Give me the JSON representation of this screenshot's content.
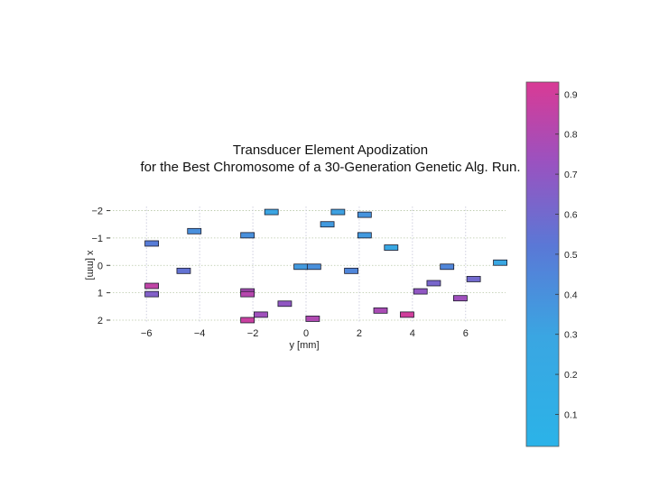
{
  "chart_data": {
    "type": "scatter",
    "title": "Transducer Element Apodization",
    "subtitle": "for the Best Chromosome of a 30-Generation Genetic Alg. Run.",
    "xlabel": "y [mm]",
    "ylabel": "x [mm]",
    "xlim": [
      -7.5,
      7.5
    ],
    "ylim": [
      -2.15,
      2.1
    ],
    "y_reversed": true,
    "grid": true,
    "xticks": [
      -6,
      -4,
      -2,
      0,
      2,
      4,
      6
    ],
    "yticks": [
      -2,
      -1,
      0,
      1,
      2
    ],
    "xtick_labels": [
      "−6",
      "−4",
      "−2",
      "0",
      "2",
      "4",
      "6"
    ],
    "ytick_labels": [
      "−2",
      "−1",
      "0",
      "1",
      "2"
    ],
    "colorbar": {
      "range": [
        0.02,
        0.93
      ],
      "ticks": [
        0.1,
        0.2,
        0.3,
        0.4,
        0.5,
        0.6,
        0.7,
        0.8,
        0.9
      ],
      "tick_labels": [
        "0.1",
        "0.2",
        "0.3",
        "0.4",
        "0.5",
        "0.6",
        "0.7",
        "0.8",
        "0.9"
      ],
      "colors": [
        "#2ab4e6",
        "#cc3a9a"
      ]
    },
    "elements": [
      {
        "y": -5.8,
        "x": -0.8,
        "a": 0.5
      },
      {
        "y": -4.6,
        "x": 0.2,
        "a": 0.55
      },
      {
        "y": -4.2,
        "x": -1.25,
        "a": 0.4
      },
      {
        "y": -5.8,
        "x": 0.75,
        "a": 0.85
      },
      {
        "y": -5.8,
        "x": 1.05,
        "a": 0.65
      },
      {
        "y": -2.2,
        "x": -1.1,
        "a": 0.4
      },
      {
        "y": -2.2,
        "x": 0.95,
        "a": 0.78
      },
      {
        "y": -2.2,
        "x": 1.05,
        "a": 0.82
      },
      {
        "y": -2.2,
        "x": 2.0,
        "a": 0.88
      },
      {
        "y": -1.7,
        "x": 1.8,
        "a": 0.75
      },
      {
        "y": -1.3,
        "x": -1.95,
        "a": 0.3
      },
      {
        "y": -0.8,
        "x": 1.4,
        "a": 0.7
      },
      {
        "y": -0.2,
        "x": 0.05,
        "a": 0.35
      },
      {
        "y": 0.3,
        "x": 0.05,
        "a": 0.4
      },
      {
        "y": 0.25,
        "x": 1.95,
        "a": 0.8
      },
      {
        "y": 0.8,
        "x": -1.5,
        "a": 0.35
      },
      {
        "y": 1.2,
        "x": -1.95,
        "a": 0.32
      },
      {
        "y": 1.7,
        "x": 0.2,
        "a": 0.45
      },
      {
        "y": 2.2,
        "x": -1.85,
        "a": 0.38
      },
      {
        "y": 2.2,
        "x": -1.1,
        "a": 0.35
      },
      {
        "y": 2.8,
        "x": 1.65,
        "a": 0.78
      },
      {
        "y": 3.2,
        "x": -0.65,
        "a": 0.28
      },
      {
        "y": 3.8,
        "x": 1.8,
        "a": 0.9
      },
      {
        "y": 4.3,
        "x": 0.95,
        "a": 0.7
      },
      {
        "y": 4.8,
        "x": 0.65,
        "a": 0.62
      },
      {
        "y": 5.3,
        "x": 0.05,
        "a": 0.45
      },
      {
        "y": 5.8,
        "x": 1.2,
        "a": 0.75
      },
      {
        "y": 6.3,
        "x": 0.5,
        "a": 0.6
      },
      {
        "y": 7.3,
        "x": -0.1,
        "a": 0.28
      }
    ]
  }
}
